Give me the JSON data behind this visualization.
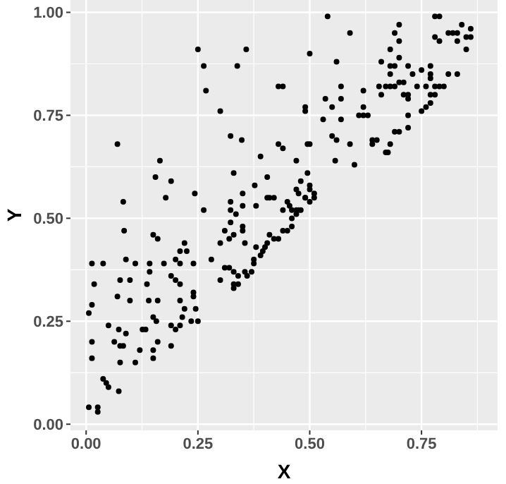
{
  "chart_data": {
    "type": "scatter",
    "xlabel": "X",
    "ylabel": "Y",
    "xlim": [
      -0.035,
      0.92
    ],
    "ylim": [
      -0.015,
      1.03
    ],
    "xticks": [
      {
        "value": 0,
        "label": "0.00"
      },
      {
        "value": 0.25,
        "label": "0.25"
      },
      {
        "value": 0.5,
        "label": "0.50"
      },
      {
        "value": 0.75,
        "label": "0.75"
      }
    ],
    "yticks": [
      {
        "value": 0,
        "label": "0.00"
      },
      {
        "value": 0.25,
        "label": "0.25"
      },
      {
        "value": 0.5,
        "label": "0.50"
      },
      {
        "value": 0.75,
        "label": "0.75"
      },
      {
        "value": 1,
        "label": "1.00"
      }
    ],
    "grid": true,
    "marker": "circle",
    "series": [
      {
        "color": "#000000",
        "x": [
          0.006,
          0.026,
          0.026,
          0.013,
          0.013,
          0.006,
          0.013,
          0.018,
          0.013,
          0.038,
          0.038,
          0.045,
          0.05,
          0.073,
          0.05,
          0.063,
          0.076,
          0.083,
          0.076,
          0.073,
          0.089,
          0.07,
          0.076,
          0.089,
          0.085,
          0.098,
          0.098,
          0.11,
          0.11,
          0.12,
          0.126,
          0.133,
          0.136,
          0.14,
          0.142,
          0.142,
          0.15,
          0.16,
          0.15,
          0.157,
          0.15,
          0.15,
          0.16,
          0.16,
          0.174,
          0.19,
          0.19,
          0.2,
          0.21,
          0.215,
          0.19,
          0.2,
          0.21,
          0.21,
          0.2,
          0.21,
          0.22,
          0.225,
          0.22,
          0.21,
          0.24,
          0.24,
          0.245,
          0.235,
          0.25,
          0.24,
          0.28,
          0.3,
          0.3,
          0.31,
          0.32,
          0.33,
          0.33,
          0.34,
          0.33,
          0.34,
          0.33,
          0.355,
          0.36,
          0.37,
          0.375,
          0.07,
          0.083,
          0.165,
          0.155,
          0.19,
          0.178,
          0.243,
          0.263,
          0.25,
          0.263,
          0.268,
          0.3,
          0.323,
          0.348,
          0.33,
          0.338,
          0.358,
          0.35,
          0.377,
          0.323,
          0.323,
          0.335,
          0.323,
          0.31,
          0.35,
          0.35,
          0.32,
          0.54,
          0.59,
          0.5,
          0.56,
          0.43,
          0.44,
          0.57,
          0.535,
          0.57,
          0.55,
          0.49,
          0.49,
          0.53,
          0.57,
          0.61,
          0.62,
          0.62,
          0.62,
          0.63,
          0.66,
          0.68,
          0.68,
          0.69,
          0.7,
          0.7,
          0.7,
          0.69,
          0.68,
          0.655,
          0.67,
          0.66,
          0.68,
          0.69,
          0.7,
          0.71,
          0.71,
          0.72,
          0.72,
          0.72,
          0.73,
          0.74,
          0.75,
          0.76,
          0.77,
          0.77,
          0.77,
          0.77,
          0.78,
          0.78,
          0.79,
          0.8,
          0.81,
          0.83,
          0.78,
          0.79,
          0.78,
          0.79,
          0.81,
          0.82,
          0.83,
          0.84,
          0.83,
          0.85,
          0.85,
          0.86,
          0.86,
          0.75,
          0.76,
          0.77,
          0.72,
          0.72,
          0.7,
          0.69,
          0.68,
          0.67,
          0.675,
          0.64,
          0.65,
          0.64,
          0.59,
          0.56,
          0.55,
          0.6,
          0.557,
          0.5,
          0.495,
          0.44,
          0.43,
          0.39,
          0.405,
          0.47,
          0.48,
          0.495,
          0.5,
          0.5,
          0.47,
          0.475,
          0.49,
          0.51,
          0.51,
          0.5,
          0.49,
          0.35,
          0.38,
          0.405,
          0.41,
          0.42,
          0.45,
          0.44,
          0.455,
          0.46,
          0.47,
          0.475,
          0.48,
          0.46,
          0.47,
          0.46,
          0.45,
          0.44,
          0.43,
          0.42,
          0.355,
          0.375,
          0.38,
          0.39,
          0.395,
          0.4,
          0.405,
          0.41
        ],
        "values": [
          0.041,
          0.041,
          0.03,
          0.2,
          0.16,
          0.27,
          0.29,
          0.34,
          0.39,
          0.39,
          0.11,
          0.1,
          0.09,
          0.08,
          0.24,
          0.2,
          0.19,
          0.19,
          0.15,
          0.23,
          0.22,
          0.31,
          0.35,
          0.4,
          0.47,
          0.35,
          0.3,
          0.15,
          0.39,
          0.18,
          0.23,
          0.23,
          0.34,
          0.3,
          0.37,
          0.39,
          0.46,
          0.45,
          0.26,
          0.25,
          0.18,
          0.16,
          0.3,
          0.2,
          0.39,
          0.19,
          0.24,
          0.23,
          0.24,
          0.26,
          0.36,
          0.35,
          0.34,
          0.39,
          0.4,
          0.42,
          0.44,
          0.42,
          0.28,
          0.3,
          0.31,
          0.32,
          0.28,
          0.25,
          0.25,
          0.39,
          0.4,
          0.35,
          0.44,
          0.38,
          0.38,
          0.33,
          0.34,
          0.34,
          0.46,
          0.36,
          0.37,
          0.44,
          0.36,
          0.37,
          0.4,
          0.68,
          0.54,
          0.64,
          0.6,
          0.59,
          0.55,
          0.56,
          0.52,
          0.91,
          0.87,
          0.81,
          0.76,
          0.7,
          0.69,
          0.61,
          0.87,
          0.91,
          0.56,
          0.58,
          0.54,
          0.52,
          0.51,
          0.49,
          0.47,
          0.48,
          0.47,
          0.45,
          0.99,
          0.95,
          0.9,
          0.88,
          0.82,
          0.82,
          0.82,
          0.79,
          0.79,
          0.77,
          0.77,
          0.76,
          0.74,
          0.74,
          0.75,
          0.81,
          0.77,
          0.75,
          0.75,
          0.88,
          0.91,
          0.87,
          0.95,
          0.97,
          0.93,
          0.89,
          0.87,
          0.85,
          0.82,
          0.82,
          0.8,
          0.82,
          0.82,
          0.83,
          0.83,
          0.8,
          0.79,
          0.8,
          0.87,
          0.85,
          0.82,
          0.86,
          0.82,
          0.84,
          0.87,
          0.85,
          0.8,
          0.8,
          0.82,
          0.82,
          0.82,
          0.85,
          0.85,
          0.99,
          0.99,
          0.94,
          0.93,
          0.95,
          0.95,
          0.95,
          0.97,
          0.93,
          0.94,
          0.91,
          0.96,
          0.94,
          0.76,
          0.77,
          0.78,
          0.75,
          0.72,
          0.71,
          0.71,
          0.68,
          0.66,
          0.66,
          0.69,
          0.69,
          0.68,
          0.68,
          0.69,
          0.7,
          0.63,
          0.64,
          0.68,
          0.68,
          0.67,
          0.68,
          0.65,
          0.6,
          0.64,
          0.59,
          0.61,
          0.58,
          0.57,
          0.57,
          0.56,
          0.55,
          0.56,
          0.55,
          0.54,
          0.55,
          0.53,
          0.53,
          0.55,
          0.55,
          0.55,
          0.54,
          0.52,
          0.53,
          0.52,
          0.52,
          0.52,
          0.52,
          0.5,
          0.51,
          0.48,
          0.47,
          0.47,
          0.45,
          0.45,
          0.37,
          0.39,
          0.43,
          0.41,
          0.42,
          0.43,
          0.44,
          0.46
        ]
      }
    ]
  }
}
